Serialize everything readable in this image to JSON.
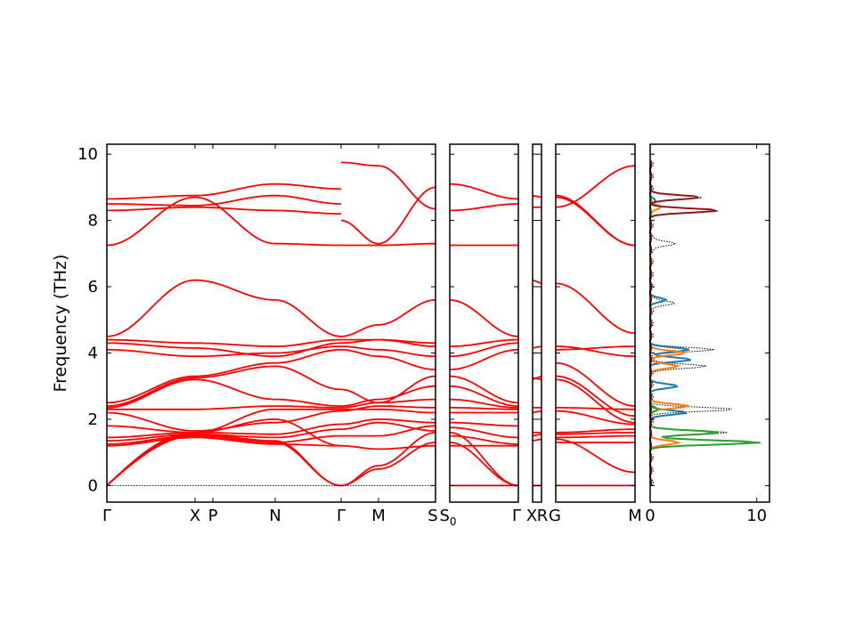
{
  "chart_data": {
    "type": "line",
    "title": "",
    "ylabel": "Frequency (THz)",
    "ylim": [
      -0.5,
      10.3
    ],
    "yticks": [
      0,
      2,
      4,
      6,
      8,
      10
    ],
    "colors": {
      "bands": "#ff0000",
      "zero_line": "#0000cc",
      "dos_total": "#000000",
      "dos_1": "#1f77b4",
      "dos_2": "#ff7f0e",
      "dos_3": "#2ca02c",
      "dos_4": "#8b1a1a"
    },
    "band_labels": [
      "Γ",
      "X",
      "P",
      "N",
      "Γ",
      "M",
      "S",
      "S0",
      "Γ",
      "X",
      "R",
      "G",
      "M"
    ],
    "path_segments": [
      {
        "from": "Γ",
        "to": "X"
      },
      {
        "from": "P",
        "to": "N"
      },
      {
        "from": "N",
        "to": "Γ"
      },
      {
        "from": "Γ",
        "to": "M"
      },
      {
        "from": "M",
        "to": "S"
      },
      {
        "from": "S0",
        "to": "Γ"
      },
      {
        "from": "X",
        "to": "R"
      },
      {
        "from": "G",
        "to": "M"
      }
    ],
    "band_frequencies_at_gamma": [
      0,
      0,
      0,
      1.2,
      1.25,
      1.35,
      1.4,
      1.45,
      1.5,
      1.8,
      2.2,
      2.3,
      2.35,
      2.4,
      2.5,
      4.1,
      4.3,
      4.4,
      4.5,
      7.25,
      8.3,
      8.5,
      8.65
    ],
    "dos": {
      "xlim": [
        0,
        11.2
      ],
      "xticks": [
        0,
        10
      ],
      "series": [
        {
          "peaks_freq": [
            1.3,
            1.6,
            2.3,
            3.6,
            4.1,
            5.5,
            7.3,
            8.3,
            8.7
          ],
          "peaks_val": [
            10.3,
            7.0,
            7.6,
            5.3,
            5.8,
            2.3,
            2.4,
            6.3,
            4.8
          ]
        },
        {
          "peaks_freq": [
            2.2,
            3.0,
            3.8,
            4.1,
            5.6,
            8.6
          ],
          "peaks_val": [
            3.4,
            2.5,
            3.8,
            3.6,
            1.4,
            0.4
          ]
        },
        {
          "peaks_freq": [
            1.3,
            2.4,
            3.6,
            4.0,
            8.4
          ],
          "peaks_val": [
            2.6,
            3.6,
            2.6,
            3.3,
            1.0
          ]
        },
        {
          "peaks_freq": [
            1.3,
            1.6,
            2.3
          ],
          "peaks_val": [
            10.2,
            6.3,
            0.6
          ]
        },
        {
          "peaks_freq": [
            8.3,
            8.7
          ],
          "peaks_val": [
            6.3,
            4.6
          ]
        }
      ]
    }
  }
}
